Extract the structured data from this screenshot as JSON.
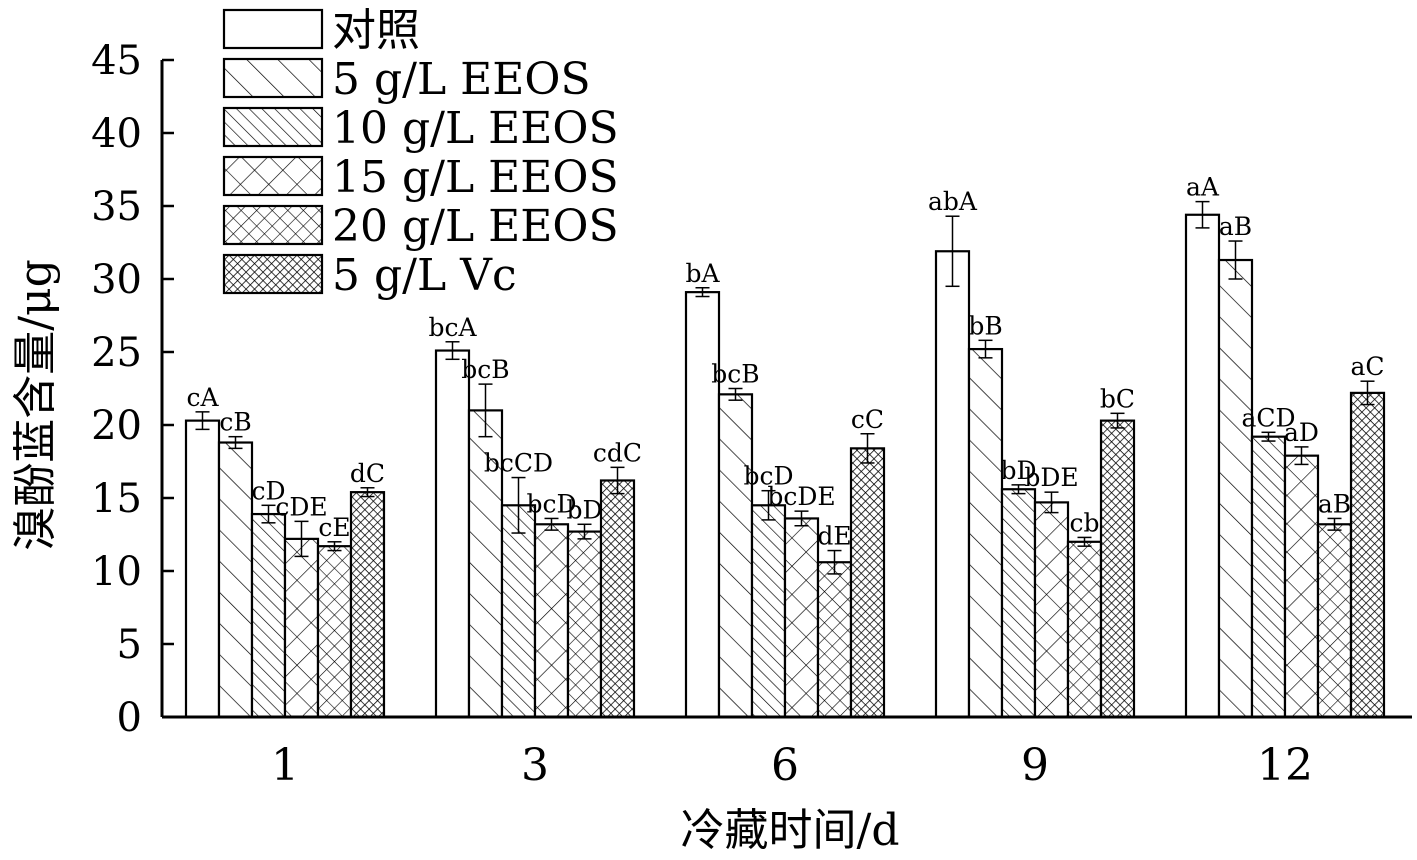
{
  "chart_data": {
    "type": "bar",
    "xlabel": "冷藏时间/d",
    "ylabel": "溴酚蓝含量/μg",
    "ylim": [
      0,
      45
    ],
    "yticks": [
      0,
      5,
      10,
      15,
      20,
      25,
      30,
      35,
      40,
      45
    ],
    "categories": [
      "1",
      "3",
      "6",
      "9",
      "12"
    ],
    "grid": false,
    "legend_position": "top-left",
    "series": [
      {
        "name": "对照",
        "pattern": "blank",
        "values": [
          20.3,
          25.1,
          29.1,
          31.9,
          34.4
        ],
        "errors": [
          0.6,
          0.6,
          0.3,
          2.4,
          0.9
        ],
        "labels": [
          "cA",
          "bcA",
          "bA",
          "abA",
          "aA"
        ]
      },
      {
        "name": "5 g/L EEOS",
        "pattern": "wide-diagonal",
        "values": [
          18.8,
          21.0,
          22.1,
          25.2,
          31.3
        ],
        "errors": [
          0.4,
          1.8,
          0.4,
          0.6,
          1.3
        ],
        "labels": [
          "cB",
          "bcB",
          "bcB",
          "bB",
          "aB"
        ]
      },
      {
        "name": "10 g/L EEOS",
        "pattern": "dense-diagonal",
        "values": [
          13.9,
          14.5,
          14.5,
          15.6,
          19.2
        ],
        "errors": [
          0.6,
          1.9,
          1.0,
          0.3,
          0.3
        ],
        "labels": [
          "cD",
          "bcCD",
          "bcD",
          "bD",
          "aCD"
        ]
      },
      {
        "name": "15 g/L EEOS",
        "pattern": "crosshatch",
        "values": [
          12.2,
          13.2,
          13.6,
          14.7,
          17.9
        ],
        "errors": [
          1.2,
          0.4,
          0.5,
          0.7,
          0.6
        ],
        "labels": [
          "cDE",
          "bcD",
          "bcDE",
          "bDE",
          "aD"
        ]
      },
      {
        "name": "20 g/L EEOS",
        "pattern": "fine-crosshatch",
        "values": [
          11.7,
          12.7,
          10.6,
          12.0,
          13.2
        ],
        "errors": [
          0.3,
          0.5,
          0.8,
          0.3,
          0.4
        ],
        "labels": [
          "cE",
          "bD",
          "dE",
          "cb",
          "aB"
        ]
      },
      {
        "name": "5 g/L Vc",
        "pattern": "dense-crosshatch",
        "values": [
          15.4,
          16.2,
          18.4,
          20.3,
          22.2
        ],
        "errors": [
          0.3,
          0.9,
          1.0,
          0.5,
          0.8
        ],
        "labels": [
          "dC",
          "cdC",
          "cC",
          "bC",
          "aC"
        ]
      }
    ]
  }
}
